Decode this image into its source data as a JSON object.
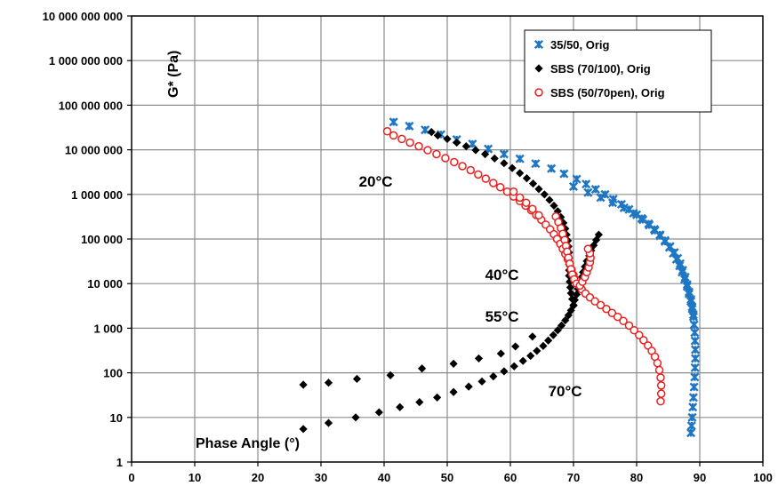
{
  "chart_data": {
    "type": "scatter",
    "title": "",
    "xlabel": "Phase Angle (°)",
    "ylabel": "G* (Pa)",
    "xlim": [
      0,
      100
    ],
    "ylim": [
      1,
      10000000000
    ],
    "yscale": "log",
    "grid": true,
    "legend_position": "top-right",
    "x_ticks": [
      "0",
      "10",
      "20",
      "30",
      "40",
      "50",
      "60",
      "70",
      "80",
      "90",
      "100"
    ],
    "y_ticks": [
      "1",
      "10",
      "100",
      "1 000",
      "10 000",
      "100 000",
      "1 000 000",
      "10 000 000",
      "100 000 000",
      "1 000 000 000",
      "10 000 000 000"
    ],
    "annotations": [
      {
        "text": "20°C",
        "x": 36,
        "y": 1500000
      },
      {
        "text": "40°C",
        "x": 56,
        "y": 12000
      },
      {
        "text": "55°C",
        "x": 56,
        "y": 1400
      },
      {
        "text": "70°C",
        "x": 66,
        "y": 30
      }
    ],
    "series": [
      {
        "name": "35/50, Orig",
        "color": "#1f77c4",
        "marker": "asterisk",
        "points": [
          [
            41.5,
            42000000
          ],
          [
            44,
            34000000
          ],
          [
            46.5,
            28000000
          ],
          [
            49,
            22000000
          ],
          [
            51.5,
            17000000
          ],
          [
            54,
            13500000
          ],
          [
            56.5,
            10500000
          ],
          [
            59,
            8000000
          ],
          [
            61.5,
            6300000
          ],
          [
            64,
            4900000
          ],
          [
            66.5,
            3800000
          ],
          [
            68.5,
            2900000
          ],
          [
            70.5,
            2200000
          ],
          [
            72,
            1700000
          ],
          [
            73.5,
            1300000
          ],
          [
            75,
            1000000
          ],
          [
            76.3,
            780000
          ],
          [
            77.6,
            600000
          ],
          [
            78.8,
            460000
          ],
          [
            80,
            350000
          ],
          [
            81,
            270000
          ],
          [
            82,
            205000
          ],
          [
            82.9,
            155000
          ],
          [
            83.7,
            118000
          ],
          [
            84.5,
            88000
          ],
          [
            85.2,
            65000
          ],
          [
            85.8,
            48000
          ],
          [
            86.3,
            35000
          ],
          [
            86.8,
            25000
          ],
          [
            87.2,
            18000
          ],
          [
            87.6,
            12500
          ],
          [
            88,
            8600
          ],
          [
            88.3,
            5900
          ],
          [
            88.6,
            4000
          ],
          [
            88.8,
            2700
          ],
          [
            89,
            1800
          ],
          [
            89.1,
            1200
          ],
          [
            89.2,
            800
          ],
          [
            89.25,
            520
          ],
          [
            89.3,
            330
          ],
          [
            89.3,
            210
          ],
          [
            89.25,
            130
          ],
          [
            89.2,
            80
          ],
          [
            89.1,
            48
          ],
          [
            89,
            28
          ],
          [
            88.9,
            17
          ],
          [
            88.8,
            10
          ],
          [
            88.7,
            6.5
          ],
          [
            88.6,
            4.5
          ],
          [
            70,
            1500000
          ],
          [
            72.3,
            1100000
          ],
          [
            74.3,
            850000
          ],
          [
            76.2,
            650000
          ],
          [
            78,
            500000
          ],
          [
            79.5,
            380000
          ],
          [
            80.8,
            290000
          ],
          [
            81.9,
            220000
          ],
          [
            82.8,
            165000
          ],
          [
            83.7,
            125000
          ],
          [
            84.5,
            93000
          ],
          [
            85.3,
            68000
          ],
          [
            86,
            50000
          ],
          [
            86.5,
            37000
          ],
          [
            86.9,
            28000
          ],
          [
            87.3,
            20000
          ],
          [
            87.7,
            14000
          ],
          [
            88,
            9500
          ],
          [
            88.3,
            6500
          ],
          [
            88.6,
            4400
          ],
          [
            88.8,
            3000
          ],
          [
            89,
            2000
          ]
        ]
      },
      {
        "name": "SBS (70/100), Orig",
        "color": "#000000",
        "marker": "diamond",
        "points": [
          [
            47.5,
            25000000
          ],
          [
            48.5,
            21000000
          ],
          [
            50,
            17500000
          ],
          [
            51.5,
            14500000
          ],
          [
            53,
            12000000
          ],
          [
            54.5,
            9800000
          ],
          [
            56,
            8000000
          ],
          [
            57.5,
            6400000
          ],
          [
            59,
            5000000
          ],
          [
            60.3,
            3900000
          ],
          [
            61.5,
            3000000
          ],
          [
            62.6,
            2300000
          ],
          [
            63.6,
            1750000
          ],
          [
            64.5,
            1320000
          ],
          [
            65.4,
            1000000
          ],
          [
            66.2,
            750000
          ],
          [
            66.9,
            560000
          ],
          [
            67.5,
            420000
          ],
          [
            68,
            310000
          ],
          [
            68.4,
            230000
          ],
          [
            68.7,
            170000
          ],
          [
            68.9,
            125000
          ],
          [
            69.1,
            92000
          ],
          [
            69.2,
            68000
          ],
          [
            69.3,
            50000
          ],
          [
            69.3,
            37000
          ],
          [
            69.3,
            27000
          ],
          [
            69.3,
            20000
          ],
          [
            69.3,
            15000
          ],
          [
            69.4,
            11000
          ],
          [
            69.5,
            8200
          ],
          [
            69.6,
            6100
          ],
          [
            69.8,
            4500
          ],
          [
            70,
            3300
          ],
          [
            74,
            125000
          ],
          [
            73.6,
            95000
          ],
          [
            73.2,
            72000
          ],
          [
            72.8,
            55000
          ],
          [
            72.5,
            42000
          ],
          [
            72.1,
            32000
          ],
          [
            71.8,
            24000
          ],
          [
            71.5,
            18000
          ],
          [
            71.2,
            13500
          ],
          [
            71,
            10000
          ],
          [
            70.7,
            7600
          ],
          [
            70.5,
            5700
          ],
          [
            70.2,
            4300
          ],
          [
            70,
            3200
          ],
          [
            69.6,
            2500
          ],
          [
            69.2,
            1950
          ],
          [
            68.7,
            1500
          ],
          [
            68.1,
            1150
          ],
          [
            67.5,
            900
          ],
          [
            66.8,
            700
          ],
          [
            66,
            530
          ],
          [
            65.2,
            400
          ],
          [
            64.2,
            310
          ],
          [
            63.2,
            240
          ],
          [
            62,
            185
          ],
          [
            60.6,
            140
          ],
          [
            59,
            108
          ],
          [
            57.3,
            83
          ],
          [
            55.5,
            64
          ],
          [
            53.4,
            49
          ],
          [
            51,
            37
          ],
          [
            48.4,
            28
          ],
          [
            45.6,
            22
          ],
          [
            42.5,
            17
          ],
          [
            39.2,
            13
          ],
          [
            35.5,
            10
          ],
          [
            31.2,
            7.5
          ],
          [
            27.2,
            5.5
          ],
          [
            63.5,
            650
          ],
          [
            60.8,
            390
          ],
          [
            58.5,
            270
          ],
          [
            55,
            210
          ],
          [
            51,
            160
          ],
          [
            46,
            125
          ],
          [
            41,
            88
          ],
          [
            35.7,
            73
          ],
          [
            31.2,
            60
          ],
          [
            27.2,
            54
          ]
        ]
      },
      {
        "name": "SBS (50/70pen), Orig",
        "color": "#e8201e",
        "marker": "circle",
        "points": [
          [
            40.5,
            26000000
          ],
          [
            41.5,
            21000000
          ],
          [
            42.8,
            17500000
          ],
          [
            44.1,
            14500000
          ],
          [
            45.5,
            12000000
          ],
          [
            46.9,
            9800000
          ],
          [
            48.3,
            8000000
          ],
          [
            49.7,
            6500000
          ],
          [
            51.1,
            5300000
          ],
          [
            52.4,
            4300000
          ],
          [
            53.7,
            3500000
          ],
          [
            54.9,
            2800000
          ],
          [
            56.1,
            2250000
          ],
          [
            57.3,
            1800000
          ],
          [
            58.4,
            1450000
          ],
          [
            59.5,
            1150000
          ],
          [
            60.5,
            900000
          ],
          [
            61.5,
            710000
          ],
          [
            62.4,
            560000
          ],
          [
            63.3,
            440000
          ],
          [
            64.1,
            345000
          ],
          [
            64.9,
            270000
          ],
          [
            65.6,
            210000
          ],
          [
            66.3,
            165000
          ],
          [
            66.9,
            128000
          ],
          [
            67.4,
            100000
          ],
          [
            67.9,
            78000
          ],
          [
            68.3,
            60000
          ],
          [
            68.7,
            46000
          ],
          [
            69.1,
            35000
          ],
          [
            69.4,
            27000
          ],
          [
            69.7,
            20500
          ],
          [
            70,
            15500
          ],
          [
            70.4,
            12000
          ],
          [
            70.8,
            9300
          ],
          [
            71.3,
            7400
          ],
          [
            71.9,
            6000
          ],
          [
            72.6,
            4900
          ],
          [
            73.4,
            4000
          ],
          [
            74.3,
            3300
          ],
          [
            75.2,
            2700
          ],
          [
            76.1,
            2200
          ],
          [
            77,
            1800
          ],
          [
            77.9,
            1450
          ],
          [
            78.8,
            1150
          ],
          [
            79.6,
            900
          ],
          [
            80.4,
            700
          ],
          [
            81.1,
            540
          ],
          [
            81.8,
            410
          ],
          [
            82.4,
            310
          ],
          [
            82.9,
            230
          ],
          [
            83.3,
            165
          ],
          [
            83.6,
            115
          ],
          [
            83.8,
            78
          ],
          [
            83.9,
            52
          ],
          [
            83.9,
            34
          ],
          [
            83.8,
            23
          ],
          [
            67.2,
            320000
          ],
          [
            67.6,
            240000
          ],
          [
            68,
            175000
          ],
          [
            68.3,
            130000
          ],
          [
            68.6,
            95000
          ],
          [
            68.8,
            70000
          ],
          [
            69,
            52000
          ],
          [
            69.2,
            38000
          ],
          [
            69.4,
            28000
          ],
          [
            69.6,
            21000
          ],
          [
            69.8,
            16000
          ],
          [
            70.1,
            12500
          ],
          [
            70.5,
            10000
          ],
          [
            71,
            9000
          ],
          [
            71.4,
            11000
          ],
          [
            71.8,
            14000
          ],
          [
            72.1,
            18000
          ],
          [
            72.4,
            23000
          ],
          [
            72.6,
            30000
          ],
          [
            72.7,
            38000
          ],
          [
            72.6,
            48000
          ],
          [
            72.3,
            60000
          ],
          [
            60.5,
            1150000
          ],
          [
            61.5,
            850000
          ],
          [
            62.5,
            650000
          ],
          [
            63.5,
            470000
          ],
          [
            64.5,
            340000
          ]
        ]
      }
    ]
  }
}
